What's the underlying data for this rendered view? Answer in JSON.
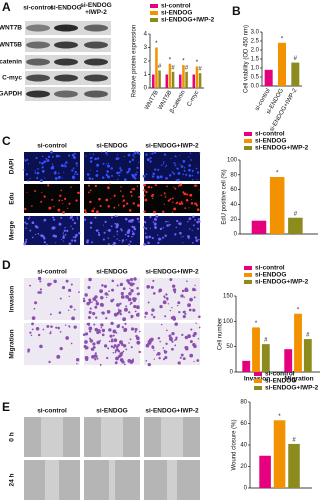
{
  "figure": {
    "panel_labels": [
      "A",
      "B",
      "C",
      "D",
      "E"
    ],
    "blot": {
      "columns": [
        "si-control",
        "si-ENDOG",
        "si-ENDOG\n+IWP-2"
      ],
      "rows": [
        "WNT7B",
        "WNT5B",
        "β-catenin",
        "C-myc",
        "GAPDH"
      ]
    },
    "panel_c": {
      "columns": [
        "si-control",
        "si-ENDOG",
        "si-ENDOG+IWP-2"
      ],
      "rows": [
        "DAPI",
        "Edu",
        "Merge"
      ]
    },
    "panel_d": {
      "columns": [
        "si-control",
        "si-ENDOG",
        "si-ENDOG+IWP-2"
      ],
      "rows": [
        "Invasion",
        "Migration"
      ]
    },
    "panel_e": {
      "columns": [
        "si-control",
        "si-ENDOG",
        "si-ENDOG+IWP-2"
      ],
      "rows": [
        "0 h",
        "24 h"
      ]
    }
  },
  "chart_data": [
    {
      "type": "bar",
      "ylabel": "Relative protein expression",
      "categories": [
        "WNT7B",
        "WNT5B",
        "β-catenin",
        "C-myc"
      ],
      "series": [
        {
          "name": "si-control",
          "color": "#e5007d",
          "values": [
            1,
            1,
            1,
            1
          ]
        },
        {
          "name": "si-ENDOG",
          "color": "#f39200",
          "values": [
            3.0,
            1.8,
            1.7,
            1.6
          ],
          "marker": "*"
        },
        {
          "name": "si-ENDOG+IWP-2",
          "color": "#8c8c1e",
          "values": [
            1.3,
            1.2,
            1.2,
            1.1
          ],
          "marker": "#"
        }
      ],
      "ylim": [
        0,
        4
      ],
      "yticks": [
        0,
        1,
        2,
        3,
        4
      ],
      "legend": "top"
    },
    {
      "type": "bar",
      "ylabel": "Cell viability (OD 450 nm)",
      "categories": [
        "si-control",
        "si-ENDOG",
        "si-ENDOG+IWP-2"
      ],
      "values": [
        0.9,
        2.4,
        1.3
      ],
      "colors": [
        "#e5007d",
        "#f39200",
        "#8c8c1e"
      ],
      "markers": [
        null,
        "*",
        "#"
      ],
      "ylim": [
        0,
        3
      ],
      "yticks": [
        {
          "value": 0,
          "label": "0.0"
        },
        0.5,
        {
          "value": 1,
          "label": "1.0"
        },
        1.5,
        {
          "value": 2,
          "label": "2.0"
        },
        2.5,
        {
          "value": 3,
          "label": "3.0"
        }
      ]
    },
    {
      "type": "bar",
      "ylabel": "EdU positive cell (%)",
      "series": [
        {
          "name": "si-control",
          "color": "#e5007d",
          "values": [
            18
          ]
        },
        {
          "name": "si-ENDOG",
          "color": "#f39200",
          "values": [
            77
          ],
          "marker": "*"
        },
        {
          "name": "si-ENDOG+IWP-2",
          "color": "#8c8c1e",
          "values": [
            22
          ],
          "marker": "#"
        }
      ],
      "ylim": [
        0,
        100
      ],
      "yticks": [
        0,
        20,
        40,
        60,
        80,
        100
      ],
      "legend": "top"
    },
    {
      "type": "bar",
      "ylabel": "Cell number",
      "categories": [
        "Invasion",
        "Migration"
      ],
      "series": [
        {
          "name": "si-control",
          "color": "#e5007d",
          "values": [
            22,
            45
          ]
        },
        {
          "name": "si-ENDOG",
          "color": "#f39200",
          "values": [
            88,
            115
          ],
          "marker": "*"
        },
        {
          "name": "si-ENDOG+IWP-2",
          "color": "#8c8c1e",
          "values": [
            55,
            65
          ],
          "marker": "#"
        }
      ],
      "ylim": [
        0,
        150
      ],
      "yticks": [
        0,
        50,
        100,
        150
      ],
      "legend": "top"
    },
    {
      "type": "bar",
      "ylabel": "Wound closure (%)",
      "series": [
        {
          "name": "si-control",
          "color": "#e5007d",
          "values": [
            30
          ]
        },
        {
          "name": "si-ENDOG",
          "color": "#f39200",
          "values": [
            63
          ],
          "marker": "*"
        },
        {
          "name": "si-ENDOG+IWP-2",
          "color": "#8c8c1e",
          "values": [
            41
          ],
          "marker": "#"
        }
      ],
      "ylim": [
        0,
        80
      ],
      "yticks": [
        0,
        20,
        40,
        60,
        80
      ],
      "legend": "top"
    }
  ]
}
